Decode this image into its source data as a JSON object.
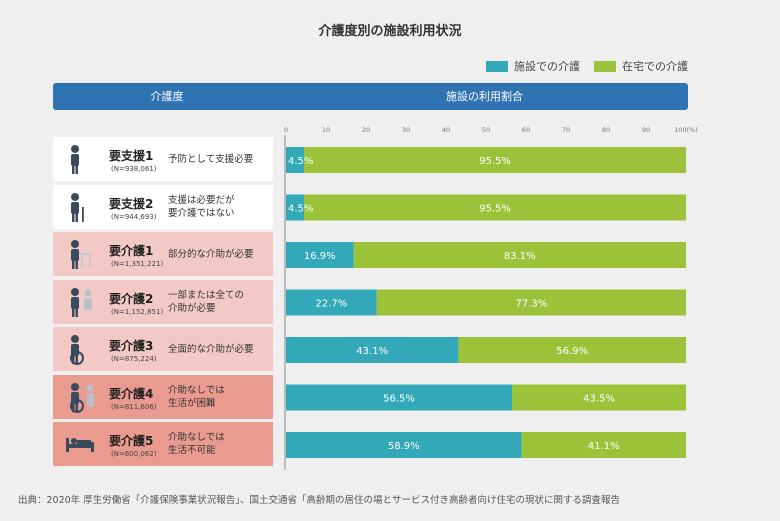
{
  "chart_data": {
    "type": "bar",
    "stacked": true,
    "orientation": "horizontal",
    "title": "介護度別の施設利用状況",
    "header_left": "介護度",
    "header_right": "施設の利用割合",
    "x_ticks": [
      "0",
      "10",
      "20",
      "30",
      "40",
      "50",
      "60",
      "70",
      "80",
      "90",
      "100(%)"
    ],
    "xlim": [
      0,
      100
    ],
    "legend": [
      {
        "name": "施設での介護",
        "color": "#32a8b8"
      },
      {
        "name": "在宅での介護",
        "color": "#9bc33a"
      }
    ],
    "categories": [
      {
        "level": "要支援1",
        "n": "(N=938,061)",
        "desc": [
          "予防として支援必要"
        ],
        "bg": "#ffffff",
        "icon": "standing-person-icon"
      },
      {
        "level": "要支援2",
        "n": "(N=944,693)",
        "desc": [
          "支援は必要だが",
          "要介護ではない"
        ],
        "bg": "#ffffff",
        "icon": "person-with-cane-icon"
      },
      {
        "level": "要介護1",
        "n": "(N=1,351,221)",
        "desc": [
          "部分的な介助が必要"
        ],
        "bg": "#f2c9c4",
        "icon": "person-with-walker-icon"
      },
      {
        "level": "要介護2",
        "n": "(N=1,152,851)",
        "desc": [
          "一部または全ての",
          "介助が必要"
        ],
        "bg": "#f2c9c4",
        "icon": "assisted-person-icon"
      },
      {
        "level": "要介護3",
        "n": "(N=875,224)",
        "desc": [
          "全面的な介助が必要"
        ],
        "bg": "#f2c9c4",
        "icon": "wheelchair-icon"
      },
      {
        "level": "要介護4",
        "n": "(N=811,606)",
        "desc": [
          "介助なしでは",
          "生活が困難"
        ],
        "bg": "#ea9a8f",
        "icon": "wheelchair-assisted-icon"
      },
      {
        "level": "要介護5",
        "n": "(N=600,062)",
        "desc": [
          "介助なしでは",
          "生活不可能"
        ],
        "bg": "#ea9a8f",
        "icon": "bedridden-person-icon"
      }
    ],
    "series": [
      {
        "name": "施設での介護",
        "values": [
          4.5,
          4.5,
          16.9,
          22.7,
          43.1,
          56.5,
          58.9
        ],
        "labels": [
          "4.5%",
          "4.5%",
          "16.9%",
          "22.7%",
          "43.1%",
          "56.5%",
          "58.9%"
        ]
      },
      {
        "name": "在宅での介護",
        "values": [
          95.5,
          95.5,
          83.1,
          77.3,
          56.9,
          43.5,
          41.1
        ],
        "labels": [
          "95.5%",
          "95.5%",
          "83.1%",
          "77.3%",
          "56.9%",
          "43.5%",
          "41.1%"
        ]
      }
    ]
  },
  "footer": "出典：2020年 厚生労働省「介護保険事業状況報告」、国土交通省「高齢期の居住の場とサービス付き高齢者向け住宅の現状に関する調査報告"
}
